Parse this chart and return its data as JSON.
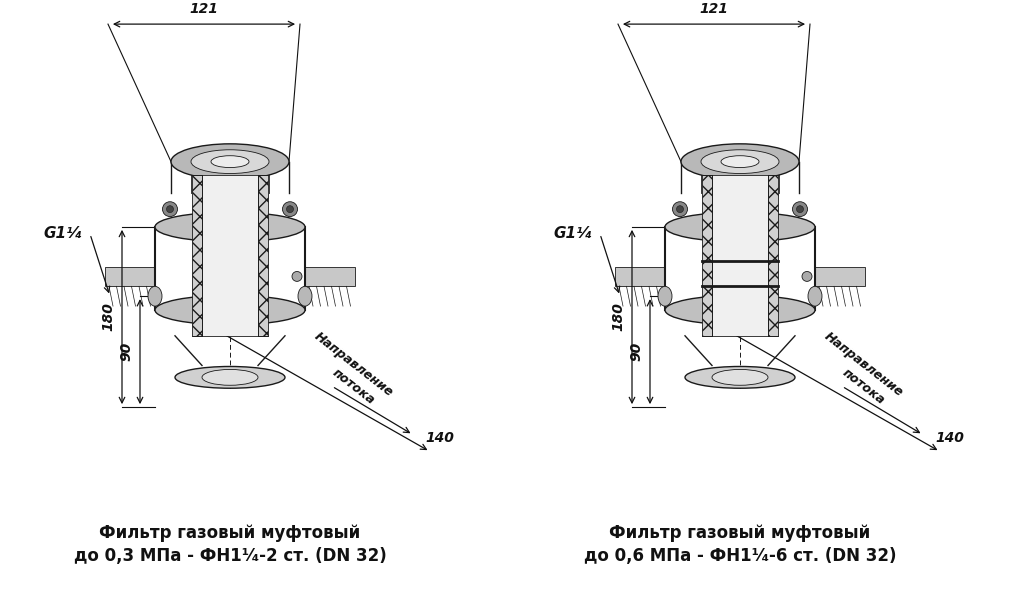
{
  "bg": "#ffffff",
  "lc": "#1a1a1a",
  "dc": "#111111",
  "fw": 10.24,
  "fh": 5.99,
  "left_cap1": "Фильтр газовый муфтовый",
  "left_cap2": "до 0,3 МПа - ФН1¹⁄₄-2 ст. (DN 32)",
  "right_cap1": "Фильтр газовый муфтовый",
  "right_cap2": "до 0,6 МПа - ФН1¹⁄₄-6 ст. (DN 32)",
  "d121": "121",
  "d140": "140",
  "d180": "180",
  "d90": "90",
  "dG": "G1¹⁄₄",
  "napr": "Направление",
  "potok": "потока",
  "lcx": 230,
  "rcx": 740,
  "fby": 265
}
